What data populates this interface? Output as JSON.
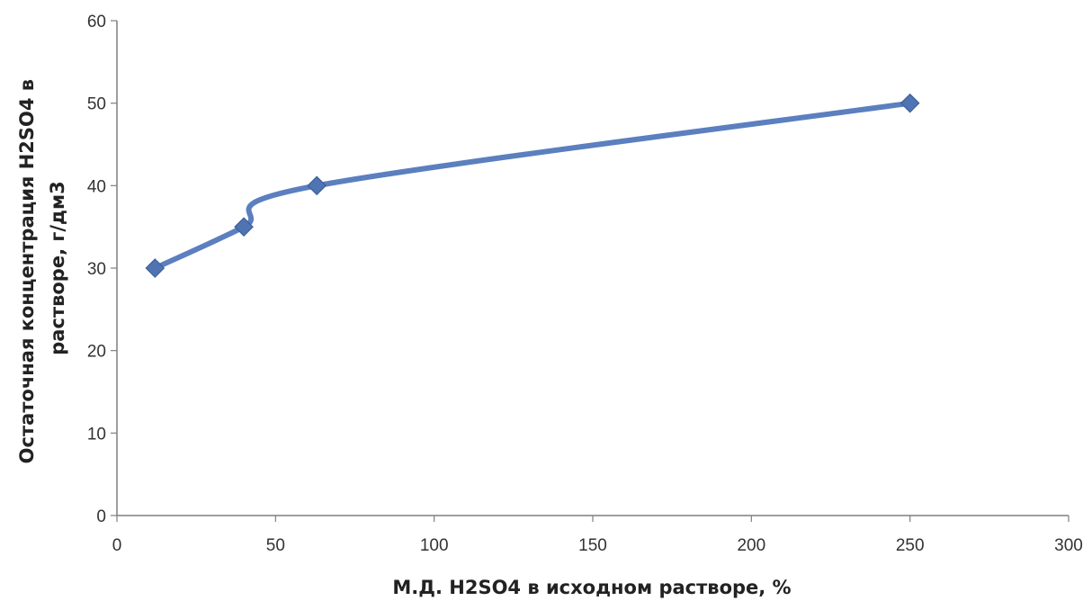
{
  "chart_data": {
    "type": "line",
    "smooth": true,
    "title": "",
    "xlabel": "М.Д. H2SO4 в исходном растворе, %",
    "ylabel_lines": [
      "Остаточная концентрация H2SO4 в",
      "растворе, г/дм3"
    ],
    "xlim": [
      0,
      300
    ],
    "ylim": [
      0,
      60
    ],
    "xticks": [
      0,
      50,
      100,
      150,
      200,
      250,
      300
    ],
    "yticks": [
      0,
      10,
      20,
      30,
      40,
      50,
      60
    ],
    "grid": false,
    "legend": "none",
    "series": [
      {
        "x": [
          12,
          40,
          63,
          250
        ],
        "y": [
          30,
          35,
          40,
          50
        ],
        "line_color": "#5b7fbf",
        "marker": "diamond",
        "marker_color": "#4f74b3"
      }
    ]
  }
}
